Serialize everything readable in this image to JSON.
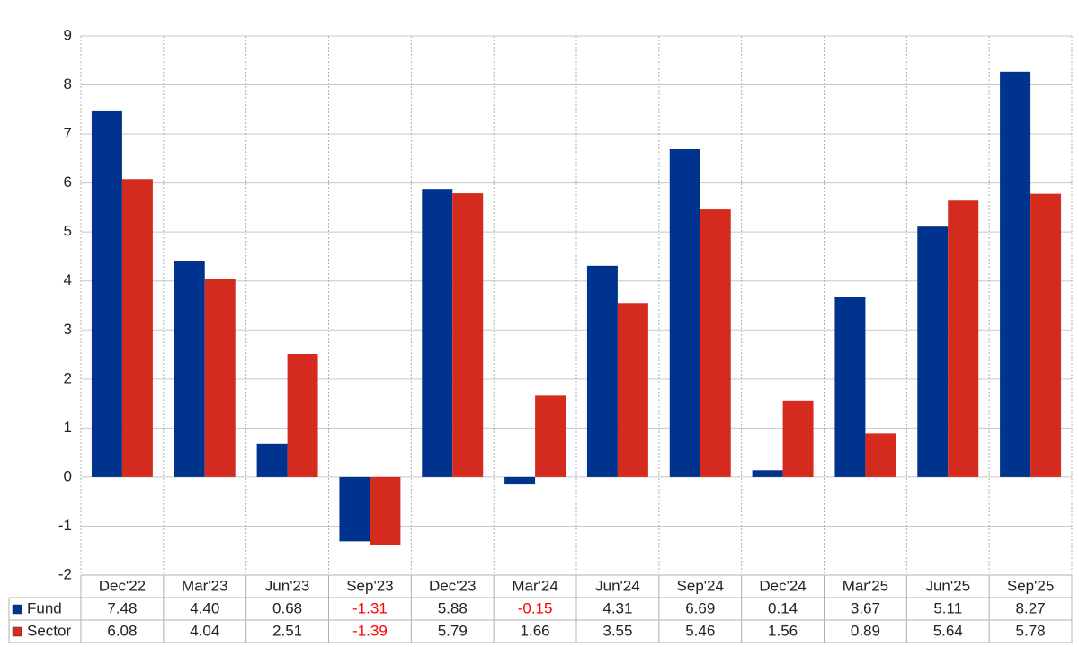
{
  "chart_data": {
    "type": "bar",
    "categories": [
      "Dec'22",
      "Mar'23",
      "Jun'23",
      "Sep'23",
      "Dec'23",
      "Mar'24",
      "Jun'24",
      "Sep'24",
      "Dec'24",
      "Mar'25",
      "Jun'25",
      "Sep'25"
    ],
    "series": [
      {
        "name": "Fund",
        "color": "#00338d",
        "values": [
          7.48,
          4.4,
          0.68,
          -1.31,
          5.88,
          -0.15,
          4.31,
          6.69,
          0.14,
          3.67,
          5.11,
          8.27
        ],
        "value_labels": [
          "7.48",
          "4.40",
          "0.68",
          "-1.31",
          "5.88",
          "-0.15",
          "4.31",
          "6.69",
          "0.14",
          "3.67",
          "5.11",
          "8.27"
        ]
      },
      {
        "name": "Sector",
        "color": "#d52b1e",
        "values": [
          6.08,
          4.04,
          2.51,
          -1.39,
          5.79,
          1.66,
          3.55,
          5.46,
          1.56,
          0.89,
          5.64,
          5.78
        ],
        "value_labels": [
          "6.08",
          "4.04",
          "2.51",
          "-1.39",
          "5.79",
          "1.66",
          "3.55",
          "5.46",
          "1.56",
          "0.89",
          "5.64",
          "5.78"
        ]
      }
    ],
    "ylim": [
      -2,
      9
    ],
    "yticks": [
      -2,
      -1,
      0,
      1,
      2,
      3,
      4,
      5,
      6,
      7,
      8,
      9
    ],
    "grid": true,
    "negative_label_color": "#ff0000"
  }
}
